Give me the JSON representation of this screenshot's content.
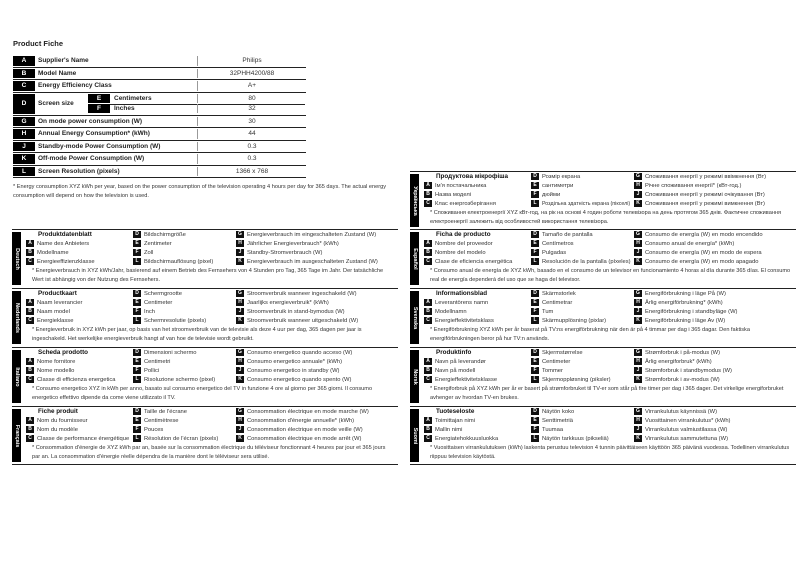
{
  "title": "Product Fiche",
  "fiche": {
    "rows": [
      {
        "letter": "A",
        "label": "Supplier's Name",
        "value": "Philips"
      },
      {
        "letter": "B",
        "label": "Model Name",
        "value": "32PHH4200/88"
      },
      {
        "letter": "C",
        "label": "Energy Efficiency Class",
        "value": "A+"
      },
      {
        "letter": "D",
        "label": "Screen size",
        "sub": [
          {
            "letter": "E",
            "label": "Centimeters",
            "value": "80"
          },
          {
            "letter": "F",
            "label": "Inches",
            "value": "32"
          }
        ]
      },
      {
        "letter": "G",
        "label": "On mode power consumption (W)",
        "value": "30"
      },
      {
        "letter": "H",
        "label": "Annual Energy Consumption* (kWh)",
        "value": "44"
      },
      {
        "letter": "J",
        "label": "Standby-mode Power Consumption (W)",
        "value": "0.3"
      },
      {
        "letter": "K",
        "label": "Off-mode Power Consumption (W)",
        "value": "0.3"
      },
      {
        "letter": "L",
        "label": "Screen Resolution (pixels)",
        "value": "1366 x 768"
      }
    ],
    "note": "* Energy consumption XYZ kWh per year, based on the power consumption of the television operating 4 hours per day for 365 days. The actual energy consumption will depend on how the television is used."
  },
  "languages": [
    {
      "lang": "Deutsch",
      "title": "Produktdatenblatt",
      "A": "Name des Anbieters",
      "B": "Modellname",
      "C": "Energieeffizienzklasse",
      "D": "Bildschirmgröße",
      "E": "Zentimeter",
      "F": "Zoll",
      "L": "Bildschirmauflösung (pixel)",
      "G": "Energieverbrauch im eingeschalteten Zustand (W)",
      "H": "Jährlicher Energieverbrauch* (kWh)",
      "J": "Standby-Stromverbrauch (W)",
      "K": "Energieverbrauch im ausgeschalteten Zustand (W)",
      "note": "* Energieverbrauch in XYZ kWh/Jahr, basierend auf einem Betrieb des Fernsehers von 4 Stunden pro Tag, 365 Tage im Jahr. Der tatsächliche Wert ist abhängig von der Nutzung des Fernsehers."
    },
    {
      "lang": "Nederlands",
      "title": "Productkaart",
      "A": "Naam leverancier",
      "B": "Naam model",
      "C": "Energieklasse",
      "D": "Schermgrootte",
      "E": "Centimeter",
      "F": "Inch",
      "L": "Schermresolutie (pixels)",
      "G": "Stroomverbruik wanneer ingeschakeld (W)",
      "H": "Jaarlijks energieverbruik* (kWh)",
      "J": "Stroomverbruik in stand-bymodus (W)",
      "K": "Stroomverbruik wanneer uitgeschakeld (W)",
      "note": "* Energieverbruik in XYZ kWh per jaar, op basis van het stroomverbruik van de televisie als deze 4 uur per dag, 365 dagen per jaar is ingeschakeld. Het werkelijke energieverbruik hangt af van hoe de televisie wordt gebruikt."
    },
    {
      "lang": "Italiano",
      "title": "Scheda prodotto",
      "A": "Nome fornitore",
      "B": "Nome modello",
      "C": "Classe di efficienza energetica",
      "D": "Dimensioni schermo",
      "E": "Centimetri",
      "F": "Pollici",
      "L": "Risoluzione schermo (pixel)",
      "G": "Consumo energetico quando acceso (W)",
      "H": "Consumo energetico annuale* (kWh)",
      "J": "Consumo energetico in standby (W)",
      "K": "Consumo energetico quando spento (W)",
      "note": "* Consumo energetico XYZ in kWh per anno, basato sul consumo energetico del TV in funzione 4 ore al giorno per 365 giorni. Il consumo energetico effettivo dipende da come viene utilizzato il TV."
    },
    {
      "lang": "Français",
      "title": "Fiche produit",
      "A": "Nom du fournisseur",
      "B": "Nom du modèle",
      "C": "Classe de performance énergétique",
      "D": "Taille de l'écrane",
      "E": "Centimètrese",
      "F": "Pouces",
      "L": "Résolution de l'écran (pixels)",
      "G": "Consommation électrique en mode marche (W)",
      "H": "Consommation d'énergie annuelle* (kWh)",
      "J": "Consommation électrique en mode veille (W)",
      "K": "Consommation électrique en mode arrêt (W)",
      "note": "* Consommation d'énergie de XYZ kWh par an, basée sur la consommation électrique du téléviseur fonctionnant 4 heures par jour et 365 jours par an. La consommation d'énergie réelle dépendra de la manière dont le téléviseur sera utilisé."
    },
    {
      "lang": "Українська",
      "title": "Продуктова мікрофіша",
      "A": "Ім'я постачальника",
      "B": "Назва моделі",
      "C": "Клас енергозберігання",
      "D": "Розмір екрана",
      "E": "сантиметри",
      "F": "дюйми",
      "L": "Роздільна здатність екрана (пікселі)",
      "G": "Споживання енергії у режимі ввімкнення (Вт)",
      "H": "Річне споживання енергії* (кВт-год.)",
      "J": "Споживання енергії у режимі очікування (Вт)",
      "K": "Споживання енергії у режимі вимкнення (Вт)",
      "note": "* Споживання електроенергії XYZ кВт-год, на рік на основі 4 годин роботи телевізора на день протягом 365 днів. Фактичне споживання електроенергії залежить від особливостей використання телевізора."
    },
    {
      "lang": "Español",
      "title": "Ficha de producto",
      "A": "Nombre del proveedor",
      "B": "Nombre del modelo",
      "C": "Clase de eficiencia energética",
      "D": "Tamaño de pantalla",
      "E": "Centímetros",
      "F": "Pulgadas",
      "L": "Resolución de la pantalla (píxeles)",
      "G": "Consumo de energía (W) en modo encendido",
      "H": "Consumo anual de energía* (kWh)",
      "J": "Consumo de energía (W) en modo de espera",
      "K": "Consumo de energía (W) en modo apagado",
      "note": "* Consumo anual de energía de XYZ kWh, basado en el consumo de un televisor en funcionamiento 4 horas al día durante 365 días. El consumo real de energía dependerá del uso que se haga del televisor."
    },
    {
      "lang": "Svenska",
      "title": "Informationsblad",
      "A": "Leverantörens namn",
      "B": "Modellnamn",
      "C": "Energieffektivitetsklass",
      "D": "Skärmstorlek",
      "E": "Centimetrar",
      "F": "Tum",
      "L": "Skärmupplösning (pixlar)",
      "G": "Energiförbrukning i läge På (W)",
      "H": "Årlig energiförbrukning* (kWh)",
      "J": "Energiförbrukning i standbyläge (W)",
      "K": "Energiförbrukning i läge Av (W)",
      "note": "* Energiförbrukning XYZ kWh per år baserat på TV:ns energiförbrukning när den är på 4 timmar per dag i 365 dagar. Den faktiska energiförbrukningen beror på hur TV:n används."
    },
    {
      "lang": "Norsk",
      "title": "Produktinfo",
      "A": "Navn på leverandør",
      "B": "Navn på modell",
      "C": "Energieffektivitetsklasse",
      "D": "Skjermstørrelse",
      "E": "Centimeter",
      "F": "Tommer",
      "L": "Skjermoppløsning (piksler)",
      "G": "Strømforbruk i på-modus (W)",
      "H": "Årlig energiforbruk* (kWh)",
      "J": "Strømforbruk i standbymodus (W)",
      "K": "Strømforbruk i av-modus (W)",
      "note": "* Energiforbruk på XYZ kWh per år er basert på strømforbruket til TV-er som står på fire timer per dag i 365 dager. Det virkelige energiforbruket avhenger av hvordan TV-en brukes."
    },
    {
      "lang": "Suomi",
      "title": "Tuoteseloste",
      "A": "Toimittajan nimi",
      "B": "Mallin nimi",
      "C": "Energiatehokkuusluokka",
      "D": "Näytön koko",
      "E": "Senttimetriä",
      "F": "Tuumaa",
      "L": "Näytön tarkkuus (pikseliä)",
      "G": "Virrankulutus käynnissä (W)",
      "H": "Vuosittainen virrankulutus* (kWh)",
      "J": "Virrankulutus valmiustilassa (W)",
      "K": "Virrankulutus sammutettuna (W)",
      "note": "* Vuosittaisen virrankulutuksen (kWh) laskenta perustuu television 4 tunnin päivittäiseen käyttöön 365 päivänä vuodessa. Todellinen virrankulutus riippuu television käytöstä."
    }
  ]
}
